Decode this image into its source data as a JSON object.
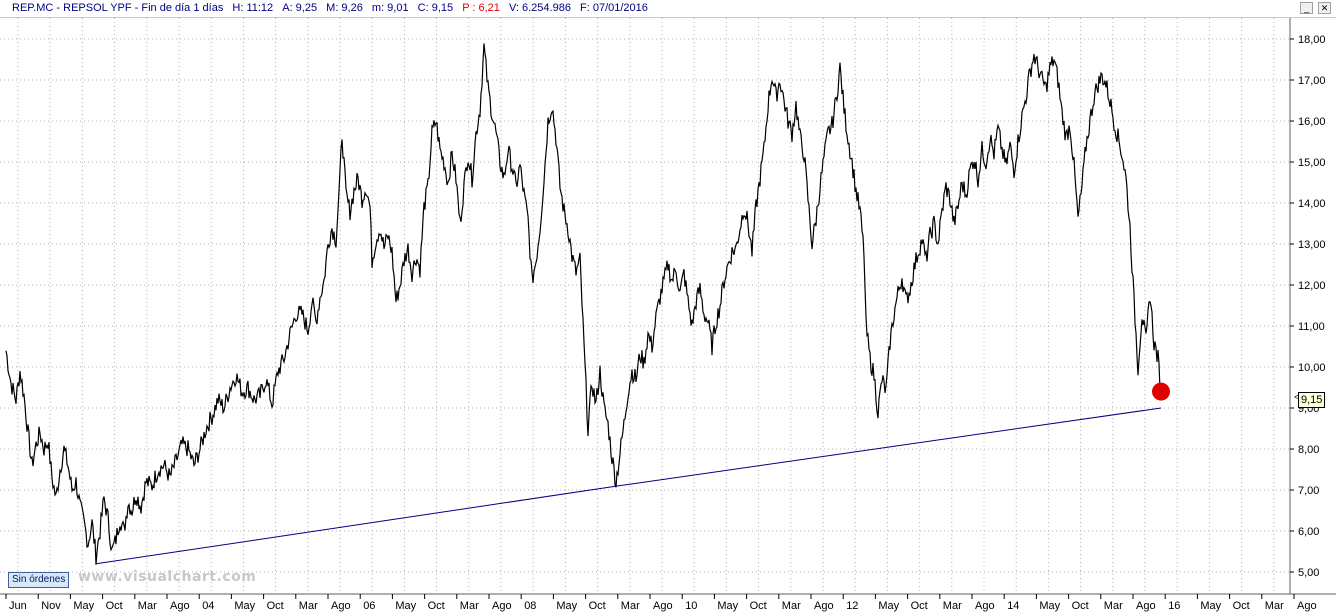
{
  "header": {
    "symbol": "REP.MC - REPSOL YPF - Fin de día 1 días",
    "high": "H: 11:12",
    "open": "A: 9,25",
    "max": "M: 9,26",
    "min": "m: 9,01",
    "close": "C: 9,15",
    "change": "P : 6,21",
    "volume": "V: 6.254.986",
    "date": "F: 07/01/2016",
    "btn_minimize": "_",
    "btn_close": "✕",
    "colors": {
      "text": "#000080",
      "change": "#e00000"
    }
  },
  "sin_ordenes": "Sin órdenes",
  "watermark": "www.visualchart.com",
  "last_price_tag": "9,15",
  "chart_data": {
    "type": "line",
    "title": "",
    "ylabel": "",
    "ylim": [
      4.5,
      18.5
    ],
    "y_ticks": [
      "18,00",
      "17,00",
      "16,00",
      "15,00",
      "14,00",
      "13,00",
      "12,00",
      "11,00",
      "10,00",
      "9,00",
      "8,00",
      "7,00",
      "6,00",
      "5,00"
    ],
    "x_ticks": [
      "Jun",
      "Nov",
      "May",
      "Oct",
      "Mar",
      "Ago",
      "04",
      "May",
      "Oct",
      "Mar",
      "Ago",
      "06",
      "May",
      "Oct",
      "Mar",
      "Ago",
      "08",
      "May",
      "Oct",
      "Mar",
      "Ago",
      "10",
      "May",
      "Oct",
      "Mar",
      "Ago",
      "12",
      "May",
      "Oct",
      "Mar",
      "Ago",
      "14",
      "May",
      "Oct",
      "Mar",
      "Ago",
      "16",
      "May",
      "Oct",
      "Mar",
      "Ago"
    ],
    "grid": true,
    "series": [
      {
        "values": [
          [
            0,
            10.4
          ],
          [
            5,
            9.6
          ],
          [
            10,
            9.2
          ],
          [
            14,
            9.9
          ],
          [
            18,
            9.3
          ],
          [
            22,
            8.4
          ],
          [
            26,
            7.6
          ],
          [
            30,
            8.1
          ],
          [
            34,
            8.4
          ],
          [
            38,
            8.0
          ],
          [
            42,
            8.2
          ],
          [
            46,
            7.3
          ],
          [
            50,
            6.8
          ],
          [
            54,
            7.5
          ],
          [
            58,
            8.0
          ],
          [
            62,
            7.6
          ],
          [
            66,
            7.0
          ],
          [
            70,
            7.2
          ],
          [
            74,
            6.6
          ],
          [
            78,
            6.2
          ],
          [
            82,
            5.7
          ],
          [
            86,
            6.2
          ],
          [
            90,
            5.4
          ],
          [
            94,
            6.0
          ],
          [
            98,
            6.8
          ],
          [
            102,
            6.3
          ],
          [
            106,
            5.5
          ],
          [
            110,
            5.8
          ],
          [
            114,
            6.3
          ],
          [
            118,
            6.0
          ],
          [
            122,
            6.7
          ],
          [
            126,
            6.5
          ],
          [
            130,
            6.9
          ],
          [
            135,
            6.6
          ],
          [
            140,
            7.2
          ],
          [
            146,
            7.1
          ],
          [
            152,
            7.5
          ],
          [
            158,
            7.6
          ],
          [
            164,
            7.3
          ],
          [
            170,
            7.7
          ],
          [
            176,
            8.1
          ],
          [
            182,
            8.0
          ],
          [
            188,
            7.6
          ],
          [
            194,
            8.0
          ],
          [
            200,
            8.5
          ],
          [
            206,
            8.8
          ],
          [
            212,
            9.2
          ],
          [
            218,
            9.0
          ],
          [
            224,
            9.5
          ],
          [
            230,
            9.8
          ],
          [
            236,
            9.4
          ],
          [
            242,
            9.5
          ],
          [
            248,
            9.2
          ],
          [
            254,
            9.3
          ],
          [
            260,
            9.7
          ],
          [
            266,
            9.1
          ],
          [
            272,
            9.9
          ],
          [
            278,
            10.2
          ],
          [
            284,
            10.8
          ],
          [
            290,
            11.3
          ],
          [
            296,
            11.3
          ],
          [
            302,
            10.9
          ],
          [
            306,
            11.6
          ],
          [
            310,
            11.1
          ],
          [
            314,
            11.7
          ],
          [
            318,
            12.1
          ],
          [
            322,
            13.0
          ],
          [
            326,
            13.4
          ],
          [
            330,
            13.1
          ],
          [
            334,
            14.6
          ],
          [
            336,
            15.7
          ],
          [
            340,
            14.2
          ],
          [
            344,
            13.8
          ],
          [
            348,
            14.3
          ],
          [
            352,
            14.6
          ],
          [
            356,
            14.1
          ],
          [
            360,
            14.4
          ],
          [
            364,
            13.9
          ],
          [
            366,
            12.6
          ],
          [
            370,
            13.1
          ],
          [
            374,
            13.4
          ],
          [
            378,
            12.9
          ],
          [
            382,
            13.2
          ],
          [
            386,
            12.8
          ],
          [
            390,
            11.6
          ],
          [
            394,
            12.0
          ],
          [
            398,
            12.6
          ],
          [
            402,
            12.9
          ],
          [
            406,
            12.3
          ],
          [
            410,
            12.7
          ],
          [
            414,
            12.4
          ],
          [
            418,
            13.9
          ],
          [
            422,
            14.4
          ],
          [
            426,
            15.7
          ],
          [
            430,
            16.0
          ],
          [
            434,
            15.3
          ],
          [
            438,
            15.0
          ],
          [
            442,
            14.5
          ],
          [
            446,
            15.2
          ],
          [
            450,
            14.6
          ],
          [
            454,
            13.5
          ],
          [
            458,
            14.4
          ],
          [
            462,
            15.2
          ],
          [
            466,
            14.6
          ],
          [
            470,
            15.7
          ],
          [
            474,
            16.3
          ],
          [
            478,
            17.8
          ],
          [
            482,
            16.8
          ],
          [
            486,
            16.2
          ],
          [
            490,
            15.7
          ],
          [
            494,
            15.0
          ],
          [
            498,
            14.6
          ],
          [
            502,
            15.3
          ],
          [
            506,
            14.9
          ],
          [
            510,
            14.4
          ],
          [
            514,
            14.9
          ],
          [
            518,
            14.2
          ],
          [
            522,
            13.6
          ],
          [
            526,
            12.1
          ],
          [
            530,
            12.6
          ],
          [
            534,
            13.4
          ],
          [
            538,
            14.6
          ],
          [
            542,
            16.0
          ],
          [
            546,
            16.4
          ],
          [
            550,
            15.6
          ],
          [
            554,
            14.4
          ],
          [
            558,
            13.8
          ],
          [
            562,
            13.4
          ],
          [
            566,
            12.7
          ],
          [
            570,
            12.3
          ],
          [
            574,
            12.6
          ],
          [
            578,
            10.5
          ],
          [
            582,
            8.5
          ],
          [
            586,
            9.6
          ],
          [
            590,
            9.1
          ],
          [
            594,
            9.9
          ],
          [
            598,
            9.0
          ],
          [
            602,
            8.6
          ],
          [
            606,
            7.8
          ],
          [
            610,
            7.2
          ],
          [
            614,
            7.9
          ],
          [
            618,
            8.6
          ],
          [
            622,
            9.4
          ],
          [
            626,
            9.9
          ],
          [
            630,
            9.7
          ],
          [
            634,
            10.3
          ],
          [
            638,
            10.1
          ],
          [
            642,
            10.8
          ],
          [
            646,
            10.5
          ],
          [
            650,
            11.2
          ],
          [
            654,
            11.7
          ],
          [
            658,
            12.1
          ],
          [
            662,
            12.5
          ],
          [
            666,
            12.1
          ],
          [
            670,
            12.4
          ],
          [
            674,
            11.8
          ],
          [
            678,
            12.3
          ],
          [
            682,
            11.6
          ],
          [
            686,
            11.0
          ],
          [
            690,
            11.6
          ],
          [
            694,
            11.9
          ],
          [
            698,
            11.3
          ],
          [
            702,
            11.1
          ],
          [
            706,
            10.5
          ],
          [
            710,
            11.1
          ],
          [
            714,
            11.5
          ],
          [
            718,
            12.1
          ],
          [
            722,
            12.5
          ],
          [
            726,
            12.8
          ],
          [
            730,
            12.9
          ],
          [
            734,
            13.4
          ],
          [
            738,
            13.9
          ],
          [
            742,
            13.5
          ],
          [
            746,
            12.8
          ],
          [
            750,
            13.9
          ],
          [
            754,
            14.6
          ],
          [
            758,
            15.3
          ],
          [
            762,
            16.4
          ],
          [
            766,
            17.1
          ],
          [
            770,
            16.6
          ],
          [
            774,
            17.0
          ],
          [
            778,
            16.5
          ],
          [
            782,
            16.0
          ],
          [
            786,
            15.7
          ],
          [
            790,
            16.4
          ],
          [
            794,
            15.6
          ],
          [
            798,
            15.2
          ],
          [
            802,
            14.1
          ],
          [
            806,
            13.0
          ],
          [
            810,
            13.6
          ],
          [
            814,
            14.4
          ],
          [
            818,
            15.1
          ],
          [
            822,
            15.7
          ],
          [
            826,
            15.9
          ],
          [
            830,
            16.5
          ],
          [
            834,
            17.3
          ],
          [
            838,
            16.3
          ],
          [
            842,
            15.6
          ],
          [
            846,
            15.0
          ],
          [
            850,
            14.3
          ],
          [
            854,
            13.8
          ],
          [
            858,
            12.8
          ],
          [
            860,
            11.0
          ],
          [
            864,
            10.2
          ],
          [
            868,
            9.8
          ],
          [
            872,
            8.9
          ],
          [
            876,
            9.7
          ],
          [
            880,
            9.4
          ],
          [
            884,
            10.6
          ],
          [
            888,
            11.3
          ],
          [
            892,
            11.8
          ],
          [
            896,
            12.2
          ],
          [
            900,
            11.6
          ],
          [
            904,
            11.9
          ],
          [
            908,
            12.4
          ],
          [
            912,
            12.8
          ],
          [
            916,
            13.1
          ],
          [
            920,
            12.6
          ],
          [
            924,
            13.2
          ],
          [
            928,
            13.5
          ],
          [
            932,
            13.0
          ],
          [
            936,
            13.8
          ],
          [
            940,
            14.4
          ],
          [
            944,
            14.1
          ],
          [
            948,
            13.5
          ],
          [
            952,
            13.9
          ],
          [
            956,
            14.5
          ],
          [
            960,
            14.2
          ],
          [
            964,
            14.8
          ],
          [
            968,
            15.1
          ],
          [
            972,
            14.6
          ],
          [
            976,
            15.3
          ],
          [
            980,
            15.0
          ],
          [
            984,
            15.6
          ],
          [
            988,
            15.2
          ],
          [
            992,
            15.8
          ],
          [
            996,
            15.3
          ],
          [
            1000,
            14.9
          ],
          [
            1004,
            15.4
          ],
          [
            1008,
            14.8
          ],
          [
            1012,
            15.5
          ],
          [
            1016,
            16.1
          ],
          [
            1020,
            16.6
          ],
          [
            1024,
            17.2
          ],
          [
            1028,
            17.6
          ],
          [
            1032,
            17.3
          ],
          [
            1036,
            17.0
          ],
          [
            1040,
            16.8
          ],
          [
            1044,
            17.3
          ],
          [
            1048,
            17.5
          ],
          [
            1052,
            17.0
          ],
          [
            1056,
            16.2
          ],
          [
            1060,
            15.6
          ],
          [
            1064,
            15.9
          ],
          [
            1068,
            14.9
          ],
          [
            1072,
            13.6
          ],
          [
            1076,
            14.4
          ],
          [
            1080,
            15.4
          ],
          [
            1084,
            16.0
          ],
          [
            1088,
            16.6
          ],
          [
            1092,
            16.9
          ],
          [
            1096,
            17.1
          ],
          [
            1100,
            16.9
          ],
          [
            1104,
            16.5
          ],
          [
            1108,
            16.0
          ],
          [
            1112,
            15.6
          ],
          [
            1116,
            15.2
          ],
          [
            1120,
            14.6
          ],
          [
            1124,
            13.4
          ],
          [
            1128,
            11.6
          ],
          [
            1132,
            10.0
          ],
          [
            1136,
            11.3
          ],
          [
            1140,
            10.6
          ],
          [
            1144,
            11.8
          ],
          [
            1148,
            10.6
          ],
          [
            1152,
            10.2
          ],
          [
            1155,
            9.4
          ]
        ]
      },
      {
        "values": [
          [
            90,
            5.2
          ],
          [
            612,
            7.1
          ],
          [
            1155,
            9.0
          ]
        ]
      }
    ],
    "annotations": [
      {
        "text": "9,15",
        "x": 1155,
        "y": 9.15
      }
    ],
    "colors": {
      "price": "#000000",
      "trend": "#000080",
      "marker": "#e00000",
      "grid": "#b0b0b0"
    }
  }
}
